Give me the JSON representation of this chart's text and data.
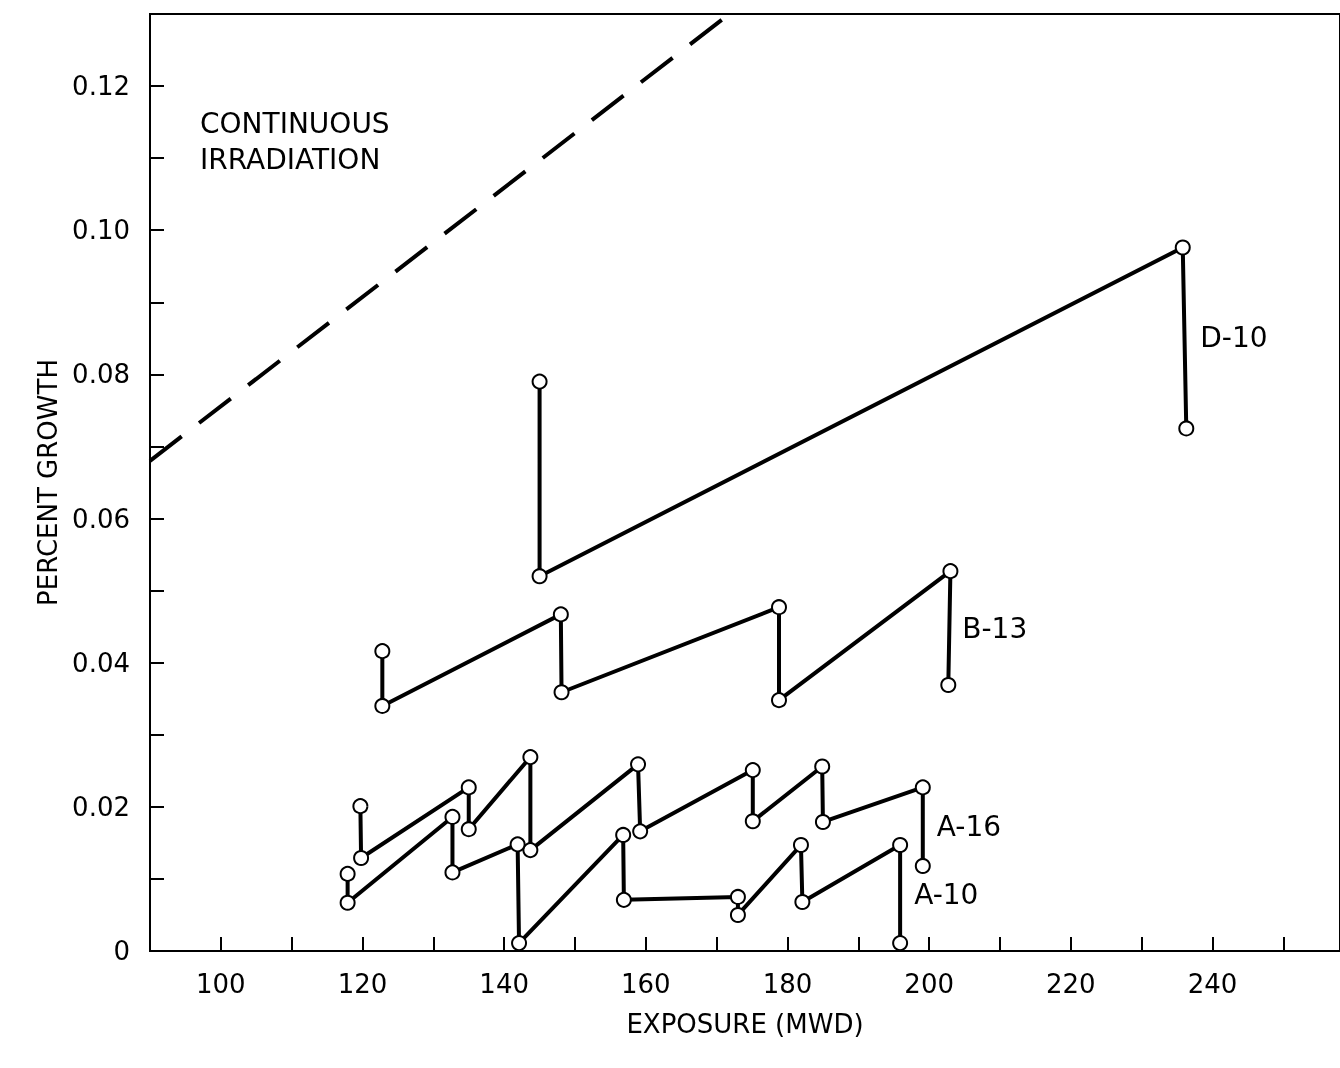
{
  "chart_data": {
    "type": "line",
    "xlabel": "EXPOSURE (MWD)",
    "ylabel": "PERCENT GROWTH",
    "annotations": [
      "CONTINUOUS IRRADIATION"
    ],
    "xlim": [
      90,
      258
    ],
    "ylim": [
      0,
      0.13
    ],
    "xticks": [
      100,
      {
        "value": 110,
        "label": null
      },
      120,
      {
        "value": 130,
        "label": null
      },
      140,
      {
        "value": 150,
        "label": null
      },
      160,
      {
        "value": 170,
        "label": null
      },
      180,
      {
        "value": 190,
        "label": null
      },
      200,
      {
        "value": 210,
        "label": null
      },
      220,
      {
        "value": 230,
        "label": null
      },
      240,
      {
        "value": 250,
        "label": null
      }
    ],
    "yticks": [
      {
        "value": 0,
        "label": "0"
      },
      {
        "value": 0.01,
        "label": null
      },
      0.02,
      {
        "value": 0.03,
        "label": null
      },
      0.04,
      {
        "value": 0.05,
        "label": null
      },
      0.06,
      {
        "value": 0.07,
        "label": null
      },
      0.08,
      {
        "value": 0.09,
        "label": null
      },
      {
        "value": 0.1,
        "label": "0.10"
      },
      {
        "value": 0.11,
        "label": null
      },
      0.12
    ],
    "grid": false,
    "legend": false,
    "marker": "circle",
    "series": [
      {
        "color": "#000000",
        "marker": "none",
        "line_style": "dashed",
        "x": [
          90,
          171.8
        ],
        "values": [
          0.068,
          0.13
        ]
      },
      {
        "name": "D-10",
        "color": "#000000",
        "x": [
          145.0,
          145.0,
          235.8,
          236.3
        ],
        "values": [
          0.079,
          0.052,
          0.0976,
          0.0725
        ]
      },
      {
        "name": "B-13",
        "color": "#000000",
        "x": [
          122.8,
          122.8,
          148.0,
          148.1,
          178.8,
          178.8,
          203.0,
          202.7
        ],
        "values": [
          0.0416,
          0.034,
          0.0467,
          0.0359,
          0.0477,
          0.0348,
          0.0527,
          0.0369
        ]
      },
      {
        "name": "A-16",
        "color": "#000000",
        "x": [
          119.7,
          119.8,
          135.0,
          135.0,
          143.7,
          143.7,
          158.9,
          159.2,
          175.1,
          175.1,
          184.9,
          185.0,
          199.1,
          199.1
        ],
        "values": [
          0.0201,
          0.0129,
          0.0227,
          0.0169,
          0.0269,
          0.014,
          0.0259,
          0.0166,
          0.0251,
          0.018,
          0.0256,
          0.0179,
          0.0227,
          0.0118
        ]
      },
      {
        "name": "A-10",
        "color": "#000000",
        "x": [
          117.9,
          117.9,
          132.7,
          132.7,
          141.9,
          142.1,
          156.8,
          156.9,
          173.0,
          173.0,
          181.9,
          182.1,
          195.9,
          195.9
        ],
        "values": [
          0.0107,
          0.0067,
          0.0186,
          0.0109,
          0.0148,
          0.0011,
          0.0161,
          0.0071,
          0.0075,
          0.005,
          0.0147,
          0.0068,
          0.0147,
          0.0011
        ]
      }
    ]
  }
}
